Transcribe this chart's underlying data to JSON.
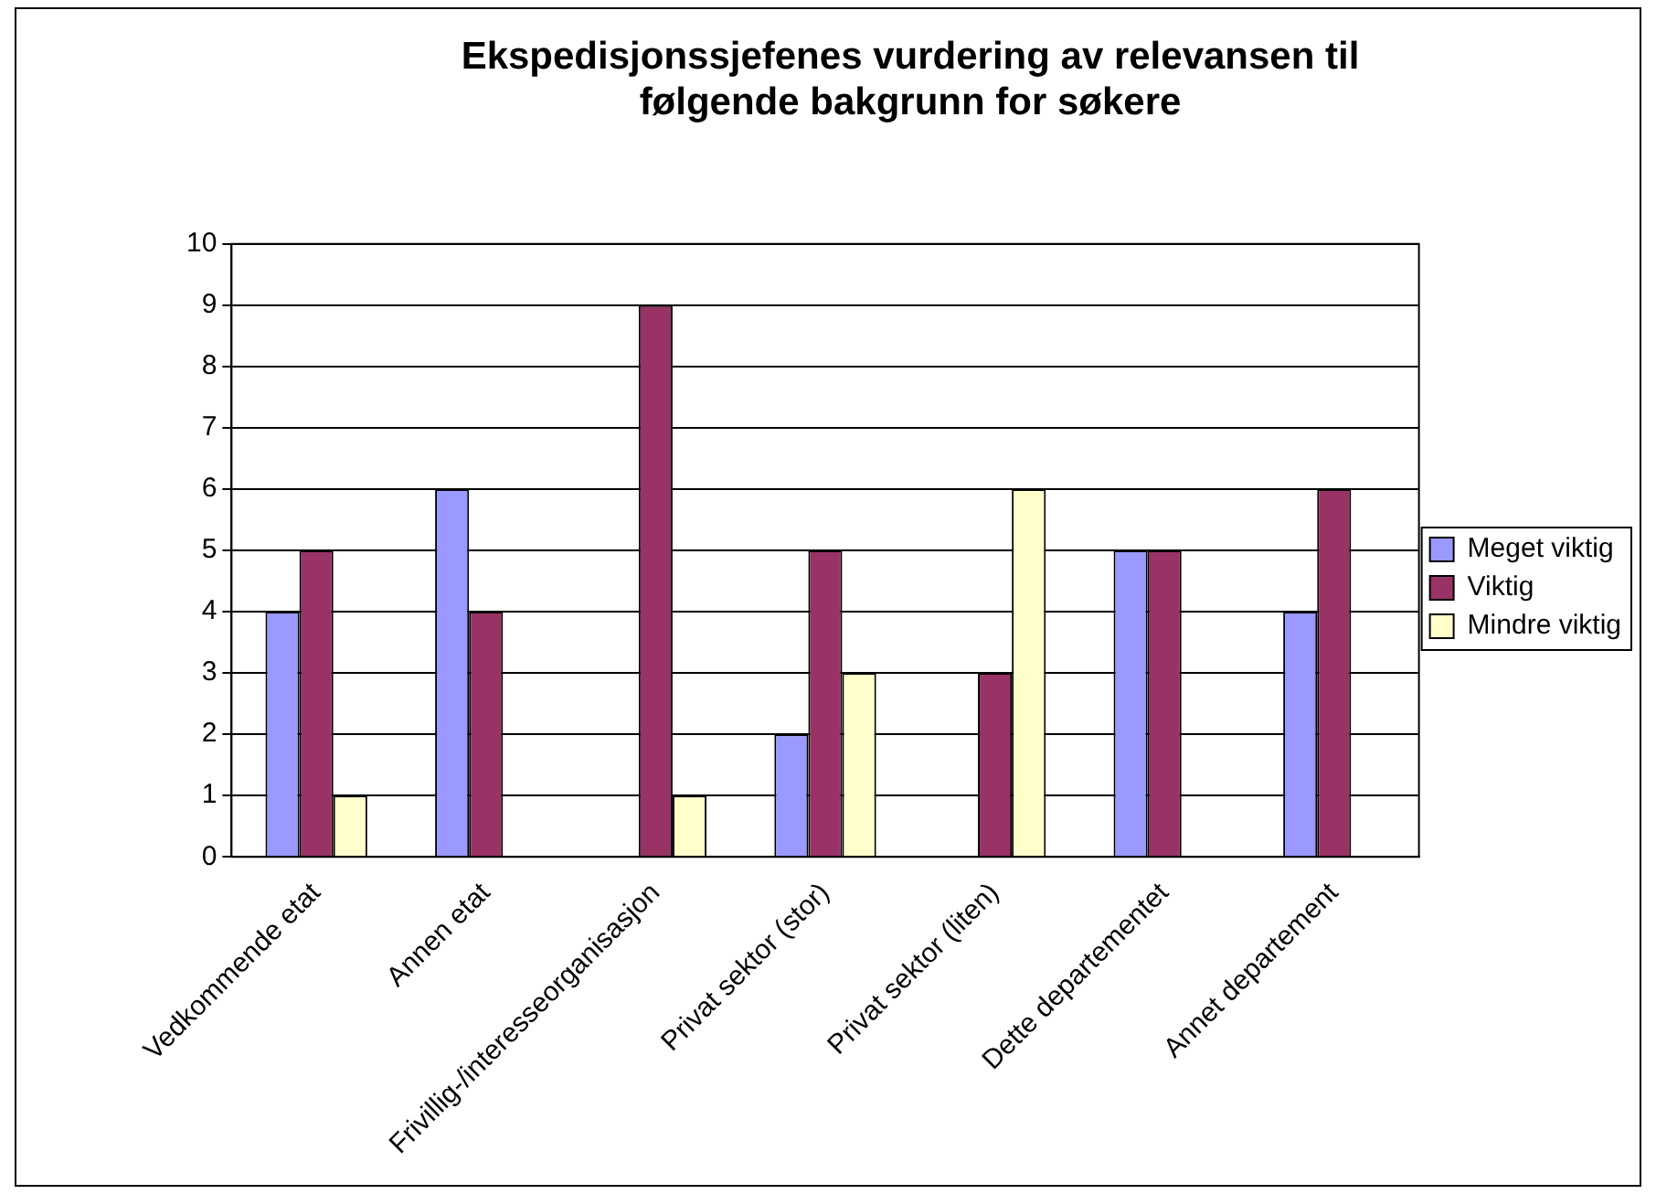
{
  "chart_data": {
    "type": "bar",
    "title": "Ekspedisjonssjefenes vurdering av relevansen til følgende bakgrunn for søkere",
    "categories": [
      "Vedkommende etat",
      "Annen etat",
      "Frivillig-/interesseorganisasjon",
      "Privat sektor (stor)",
      "Privat sektor (liten)",
      "Dette departementet",
      "Annet departement"
    ],
    "series": [
      {
        "name": "Meget viktig",
        "color": "#9999ff",
        "values": [
          4,
          6,
          0,
          2,
          0,
          5,
          4
        ]
      },
      {
        "name": "Viktig",
        "color": "#993366",
        "values": [
          5,
          4,
          9,
          5,
          3,
          5,
          6
        ]
      },
      {
        "name": "Mindre viktig",
        "color": "#ffffcc",
        "values": [
          1,
          0,
          1,
          3,
          6,
          0,
          0
        ]
      }
    ],
    "ylim": [
      0,
      10
    ],
    "yticks": [
      0,
      1,
      2,
      3,
      4,
      5,
      6,
      7,
      8,
      9,
      10
    ],
    "grid": "y",
    "legend": "right"
  }
}
